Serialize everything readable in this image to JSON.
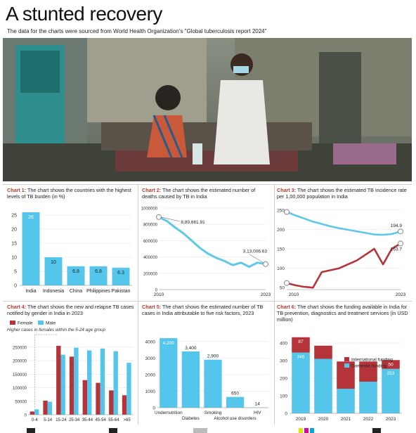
{
  "headline": "A stunted recovery",
  "subline": "The data for the charts were sourced from World Health Organization's \"Global tuberculosis report 2024\"",
  "photo": {
    "description_icon": "photo-tb-patient-nurse"
  },
  "colors": {
    "accent_red": "#c0392b",
    "blue": "#54c6ec",
    "line_blue": "#5fc8ea",
    "dark_red": "#b5343a"
  },
  "chart_data": [
    {
      "id": "chart1",
      "type": "bar",
      "label": "Chart 1:",
      "title": "The chart shows the countries with the highest levels of TB burden (in %)",
      "categories": [
        "India",
        "Indonesia",
        "China",
        "Philippines",
        "Pakistan"
      ],
      "values": [
        26,
        10,
        6.8,
        6.8,
        6.3
      ],
      "value_labels": [
        "26",
        "10",
        "6.8",
        "6.8",
        "6.3"
      ],
      "ylim": [
        0,
        28
      ],
      "yticks": [
        0,
        5,
        10,
        15,
        20,
        25
      ],
      "grid": true
    },
    {
      "id": "chart2",
      "type": "line",
      "label": "Chart 2:",
      "title": "The chart shows the estimated number of deaths caused by TB in India",
      "x": [
        2010,
        2011,
        2012,
        2013,
        2014,
        2015,
        2016,
        2017,
        2018,
        2019,
        2020,
        2021,
        2022,
        2023
      ],
      "values": [
        889661.91,
        840000,
        760000,
        690000,
        600000,
        510000,
        440000,
        390000,
        350000,
        300000,
        330000,
        280000,
        330000,
        313000
      ],
      "first_label": "8,89,661.91",
      "last_label": "3,13,006.63",
      "xticks": [
        "2010",
        "2023"
      ],
      "ylim": [
        0,
        1000000
      ],
      "yticks": [
        0,
        200000,
        400000,
        600000,
        800000,
        1000000
      ],
      "ytick_labels": [
        "0",
        "200000",
        "400000",
        "600000",
        "800000",
        "1000000"
      ]
    },
    {
      "id": "chart3",
      "type": "line",
      "label": "Chart 3:",
      "title": "The chart shows the estimated TB incidence rate per 1,00,000 population in India",
      "x": [
        2010,
        2011,
        2012,
        2013,
        2014,
        2015,
        2016,
        2017,
        2018,
        2019,
        2020,
        2021,
        2022,
        2023
      ],
      "series": [
        {
          "values": [
            245,
            236,
            228,
            220,
            214,
            208,
            203,
            199,
            195,
            191,
            187,
            186,
            188,
            194.9
          ],
          "end_label": "194.9"
        },
        {
          "values": [
            62,
            56,
            52,
            50,
            90,
            95,
            100,
            110,
            120,
            135,
            150,
            110,
            150,
            163.7
          ],
          "end_label": "163.7"
        }
      ],
      "xticks": [
        "2010",
        "2023"
      ],
      "ylim": [
        45,
        255
      ],
      "yticks": [
        50,
        100,
        150,
        200,
        250
      ]
    },
    {
      "id": "chart4",
      "type": "bar",
      "label": "Chart 4:",
      "title": "The chart shows the new and relapse TB cases notified by gender in India in 2023",
      "annotation": "Higher cases in females within the 5-24 age group",
      "categories": [
        "0-4",
        "5-14",
        "15-24",
        "25-34",
        "35-44",
        "45-54",
        "55-64",
        ">65"
      ],
      "series": [
        {
          "name": "Female",
          "values": [
            12000,
            52000,
            255000,
            215000,
            128000,
            118000,
            90000,
            72000
          ]
        },
        {
          "name": "Male",
          "values": [
            20000,
            48000,
            222000,
            248000,
            238000,
            245000,
            235000,
            192000
          ]
        }
      ],
      "ylim": [
        0,
        260000
      ],
      "yticks": [
        0,
        50000,
        100000,
        150000,
        200000,
        250000
      ]
    },
    {
      "id": "chart5",
      "type": "bar",
      "label": "Chart 5:",
      "title": "The chart shows the estimated number of TB cases in India attributable to five risk factors, 2023",
      "categories": [
        "Undernutrition",
        "Diabetes",
        "Smoking",
        "Alcohol use disorders",
        "HIV"
      ],
      "values": [
        4200,
        3400,
        2900,
        650,
        14
      ],
      "value_labels": [
        "4,200",
        "3,400",
        "2,900",
        "650",
        "14"
      ],
      "ylim": [
        0,
        4500
      ],
      "yticks": [
        0,
        1000,
        2000,
        3000,
        4000
      ]
    },
    {
      "id": "chart6",
      "type": "bar",
      "label": "Chart 6:",
      "title": "The chart shows the funding available in India for TB prevention, diagnostics and treatment services (in USD million)",
      "categories": [
        "2019",
        "2020",
        "2021",
        "2022",
        "2023"
      ],
      "series": [
        {
          "name": "International funding",
          "values": [
            87,
            75,
            155,
            115,
            50
          ]
        },
        {
          "name": "Domestic funding",
          "values": [
            346,
            310,
            140,
            180,
            253
          ]
        }
      ],
      "value_labels": {
        "international": [
          "87",
          "",
          "",
          "",
          "50"
        ],
        "domestic": [
          "346",
          "",
          "",
          "",
          "253"
        ]
      },
      "ylim": [
        0,
        480
      ],
      "yticks": [
        0,
        100,
        200,
        300,
        400
      ]
    }
  ]
}
